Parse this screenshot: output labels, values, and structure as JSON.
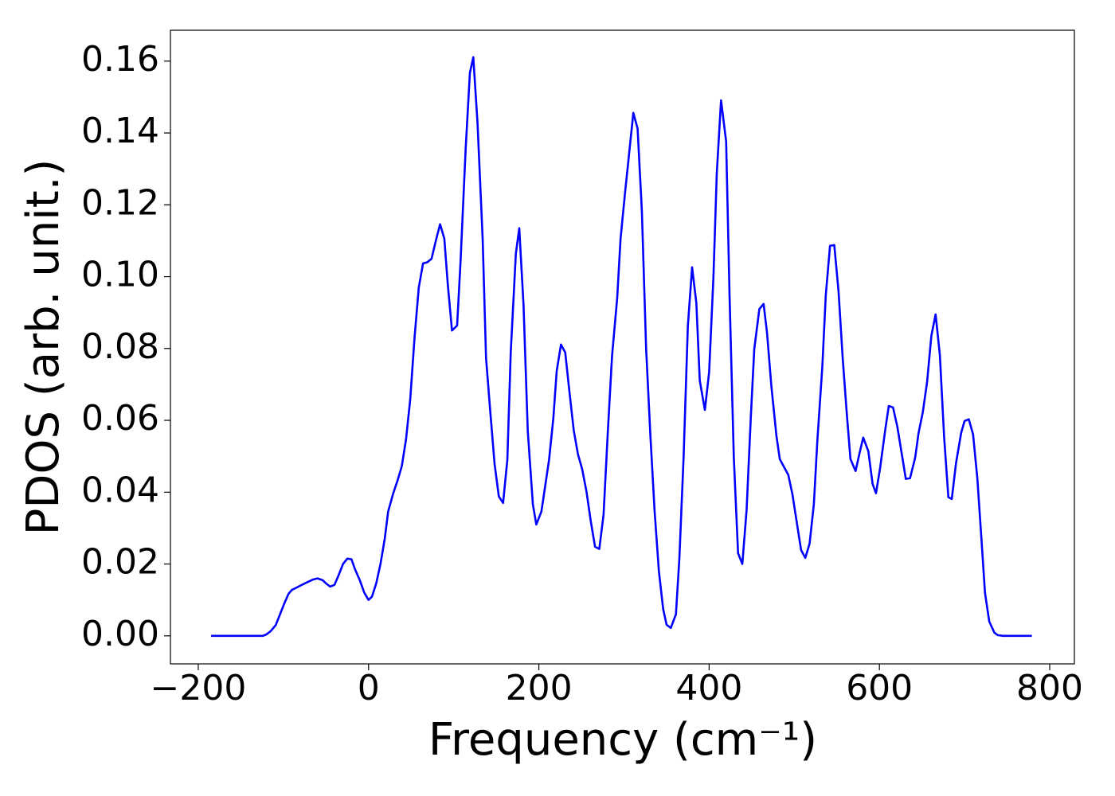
{
  "chart_data": {
    "type": "line",
    "x_label": "Frequency (cm⁻¹)",
    "y_label": "PDOS (arb. unit.)",
    "color": "#0000ff",
    "grid": false,
    "xlim": [
      -232.7,
      829
    ],
    "ylim": [
      -0.0078,
      0.1686
    ],
    "xticks": [
      {
        "value": -200,
        "label": "−200"
      },
      0,
      200,
      400,
      600,
      800
    ],
    "yticks": [
      {
        "value": 0,
        "label": "0.00"
      },
      {
        "value": 0.02,
        "label": "0.02"
      },
      {
        "value": 0.04,
        "label": "0.04"
      },
      {
        "value": 0.06,
        "label": "0.06"
      },
      {
        "value": 0.08,
        "label": "0.08"
      },
      {
        "value": 0.1,
        "label": "0.10"
      },
      {
        "value": 0.12,
        "label": "0.12"
      },
      {
        "value": 0.14,
        "label": "0.14"
      },
      {
        "value": 0.16,
        "label": "0.16"
      }
    ],
    "x": [
      -185,
      -124,
      -120,
      -115,
      -109,
      -104,
      -99,
      -94,
      -90,
      -84,
      -75,
      -65,
      -60,
      -54,
      -50,
      -45,
      -40,
      -35,
      -30,
      -25,
      -20,
      -16,
      -10,
      -5,
      0,
      4,
      9,
      14,
      19,
      23,
      29,
      34,
      39,
      44,
      49,
      54,
      59,
      64,
      69,
      74,
      79,
      84,
      89,
      93,
      98,
      104,
      108,
      114,
      119,
      123,
      128,
      134,
      138,
      143,
      148,
      153,
      158,
      163,
      167,
      173,
      177,
      182,
      187,
      193,
      197,
      203,
      207,
      212,
      217,
      221,
      226,
      231,
      236,
      241,
      246,
      251,
      256,
      261,
      266,
      271,
      276,
      281,
      286,
      292,
      296,
      301,
      307,
      311,
      316,
      321,
      326,
      331,
      336,
      341,
      346,
      350,
      355,
      361,
      365,
      370,
      375,
      380,
      385,
      389,
      395,
      400,
      405,
      409,
      414,
      420,
      424,
      429,
      434,
      439,
      444,
      449,
      453,
      459,
      464,
      468,
      473,
      479,
      483,
      488,
      493,
      498,
      503,
      508,
      513,
      518,
      523,
      527,
      533,
      537,
      542,
      547,
      552,
      557,
      562,
      566,
      572,
      577,
      581,
      587,
      592,
      596,
      601,
      607,
      611,
      616,
      621,
      627,
      631,
      636,
      642,
      646,
      651,
      656,
      661,
      666,
      671,
      676,
      681,
      685,
      690,
      696,
      700,
      705,
      710,
      715,
      720,
      724,
      729,
      735,
      739,
      745,
      779
    ],
    "values": [
      0,
      0,
      0.0004,
      0.0013,
      0.003,
      0.006,
      0.009,
      0.0117,
      0.0128,
      0.0135,
      0.0146,
      0.0157,
      0.016,
      0.0155,
      0.0146,
      0.0137,
      0.0142,
      0.017,
      0.02,
      0.0215,
      0.0213,
      0.0186,
      0.0153,
      0.012,
      0.01,
      0.0109,
      0.0146,
      0.02,
      0.027,
      0.0346,
      0.0397,
      0.0432,
      0.0472,
      0.0547,
      0.066,
      0.083,
      0.097,
      0.1037,
      0.104,
      0.105,
      0.11,
      0.1146,
      0.1106,
      0.098,
      0.085,
      0.0864,
      0.104,
      0.1354,
      0.1567,
      0.1611,
      0.1427,
      0.1106,
      0.0773,
      0.0623,
      0.0479,
      0.0388,
      0.037,
      0.049,
      0.079,
      0.1064,
      0.1135,
      0.0922,
      0.057,
      0.0366,
      0.031,
      0.0346,
      0.041,
      0.049,
      0.0605,
      0.0738,
      0.0811,
      0.0789,
      0.0678,
      0.0572,
      0.0505,
      0.0463,
      0.0401,
      0.0319,
      0.0248,
      0.0242,
      0.0337,
      0.0567,
      0.078,
      0.094,
      0.1106,
      0.1228,
      0.1365,
      0.1456,
      0.1412,
      0.1183,
      0.08,
      0.0558,
      0.0346,
      0.018,
      0.0075,
      0.0031,
      0.0022,
      0.006,
      0.0213,
      0.0496,
      0.0862,
      0.1026,
      0.0926,
      0.0711,
      0.0629,
      0.0734,
      0.0995,
      0.1288,
      0.1491,
      0.1376,
      0.0946,
      0.0496,
      0.023,
      0.02,
      0.035,
      0.061,
      0.0798,
      0.091,
      0.0924,
      0.0844,
      0.0698,
      0.0558,
      0.0492,
      0.047,
      0.0448,
      0.0392,
      0.0315,
      0.0239,
      0.0217,
      0.0257,
      0.0366,
      0.0539,
      0.0751,
      0.0948,
      0.1086,
      0.1088,
      0.0959,
      0.0769,
      0.0609,
      0.0492,
      0.0459,
      0.0512,
      0.0552,
      0.0514,
      0.0423,
      0.0397,
      0.047,
      0.0576,
      0.064,
      0.0636,
      0.0583,
      0.0496,
      0.0437,
      0.0439,
      0.0496,
      0.0565,
      0.0623,
      0.0707,
      0.0835,
      0.0895,
      0.0782,
      0.0554,
      0.0386,
      0.0381,
      0.0481,
      0.0565,
      0.0598,
      0.0603,
      0.0561,
      0.0439,
      0.0264,
      0.012,
      0.004,
      0.0009,
      0.0002,
      0,
      0
    ]
  }
}
